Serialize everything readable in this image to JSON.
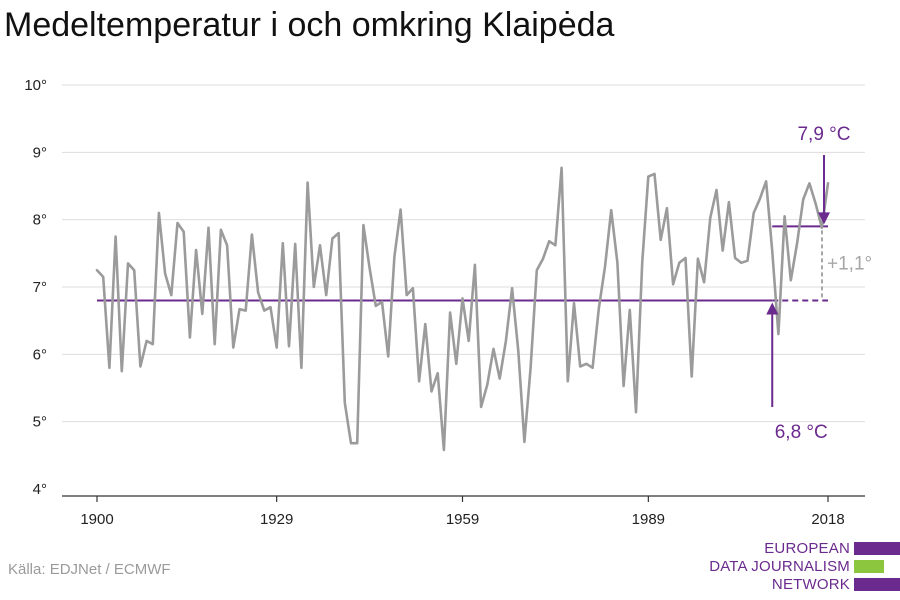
{
  "title": "Medeltemperatur i och omkring Klaipėda",
  "source": "Källa: EDJNet / ECMWF",
  "logo": {
    "lines": [
      "EUROPEAN",
      "DATA JOURNALISM",
      "NETWORK"
    ],
    "colors": [
      "#6b2a8e",
      "#8cc63f",
      "#6b2a8e"
    ]
  },
  "colors": {
    "series": "#9b9b9b",
    "accent": "#6b2a8e",
    "diff": "#a6a6a6",
    "grid": "#dddddd"
  },
  "chart_data": {
    "type": "line",
    "title": "Medeltemperatur i och omkring Klaipėda",
    "xlabel": "",
    "ylabel": "",
    "ylim": [
      4,
      10
    ],
    "xlim": [
      1900,
      2018
    ],
    "grid": true,
    "legend": "none",
    "y_ticks": [
      4,
      5,
      6,
      7,
      8,
      9,
      10
    ],
    "y_tick_labels": [
      "4°",
      "5°",
      "6°",
      "7°",
      "8°",
      "9°",
      "10°"
    ],
    "x_ticks": [
      1900,
      1929,
      1959,
      1989,
      2018
    ],
    "x_tick_labels": [
      "1900",
      "1929",
      "1959",
      "1989",
      "2018"
    ],
    "series": [
      {
        "x": [
          1900,
          1901,
          1902,
          1903,
          1904,
          1905,
          1906,
          1907,
          1908,
          1909,
          1910,
          1911,
          1912,
          1913,
          1914,
          1915,
          1916,
          1917,
          1918,
          1919,
          1920,
          1921,
          1922,
          1923,
          1924,
          1925,
          1926,
          1927,
          1928,
          1929,
          1930,
          1931,
          1932,
          1933,
          1934,
          1935,
          1936,
          1937,
          1938,
          1939,
          1940,
          1941,
          1942,
          1943,
          1944,
          1945,
          1946,
          1947,
          1948,
          1949,
          1950,
          1951,
          1952,
          1953,
          1954,
          1955,
          1956,
          1957,
          1958,
          1959,
          1960,
          1961,
          1962,
          1963,
          1964,
          1965,
          1966,
          1967,
          1968,
          1969,
          1970,
          1971,
          1972,
          1973,
          1974,
          1975,
          1976,
          1977,
          1978,
          1979,
          1980,
          1981,
          1982,
          1983,
          1984,
          1985,
          1986,
          1987,
          1988,
          1989,
          1990,
          1991,
          1992,
          1993,
          1994,
          1995,
          1996,
          1997,
          1998,
          1999,
          2000,
          2001,
          2002,
          2003,
          2004,
          2005,
          2006,
          2007,
          2008,
          2009,
          2010,
          2011,
          2012,
          2013,
          2014,
          2015,
          2016,
          2017,
          2018
        ],
        "values": [
          7.25,
          7.15,
          5.8,
          7.75,
          5.75,
          7.35,
          7.25,
          5.82,
          6.2,
          6.15,
          8.1,
          7.2,
          6.88,
          7.95,
          7.82,
          6.25,
          7.55,
          6.6,
          7.88,
          6.15,
          7.85,
          7.62,
          6.1,
          6.67,
          6.65,
          7.78,
          6.92,
          6.65,
          6.7,
          6.1,
          7.65,
          6.12,
          7.64,
          5.8,
          8.55,
          7.0,
          7.62,
          6.88,
          7.72,
          7.8,
          5.28,
          4.68,
          4.68,
          7.92,
          7.28,
          6.72,
          6.78,
          5.97,
          7.45,
          8.15,
          6.88,
          6.98,
          5.6,
          6.45,
          5.45,
          5.72,
          4.58,
          6.62,
          5.86,
          6.83,
          6.2,
          7.33,
          5.22,
          5.55,
          6.08,
          5.64,
          6.2,
          6.98,
          6.05,
          4.7,
          5.8,
          7.25,
          7.42,
          7.68,
          7.62,
          8.77,
          5.6,
          6.76,
          5.82,
          5.86,
          5.8,
          6.68,
          7.3,
          8.14,
          7.36,
          5.53,
          6.66,
          5.14,
          7.36,
          8.64,
          8.68,
          7.7,
          8.17,
          7.04,
          7.36,
          7.43,
          5.67,
          7.42,
          7.07,
          8.03,
          8.44,
          7.54,
          8.26,
          7.43,
          7.36,
          7.39,
          8.1,
          8.31,
          8.57,
          7.54,
          6.3,
          8.05,
          7.1,
          7.64,
          8.3,
          8.54,
          8.24,
          7.88,
          8.54
        ]
      }
    ],
    "reference_lines": [
      {
        "value": 6.8,
        "from": 1900,
        "to": 2018,
        "label": "6,8 °C"
      },
      {
        "value": 7.9,
        "from": 2009,
        "to": 2018,
        "label": "7,9 °C"
      }
    ],
    "difference_label": "+1,1°"
  }
}
